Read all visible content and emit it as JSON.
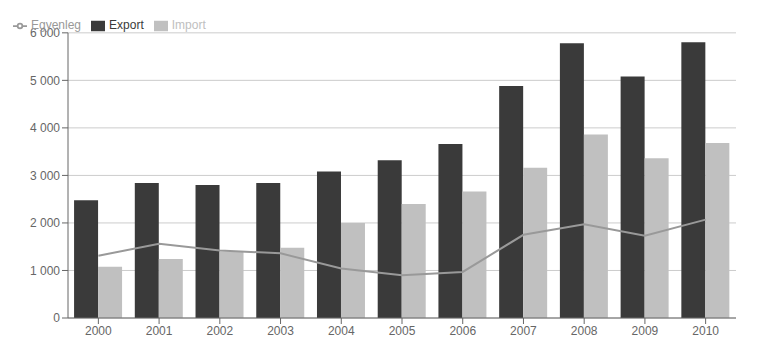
{
  "chart_data": {
    "type": "bar",
    "categories": [
      "2000",
      "2001",
      "2002",
      "2003",
      "2004",
      "2005",
      "2006",
      "2007",
      "2008",
      "2009",
      "2010"
    ],
    "series": [
      {
        "name": "Export",
        "type": "bar",
        "color": "#3a3a3a",
        "values": [
          2480,
          2840,
          2800,
          2840,
          3080,
          3320,
          3660,
          4880,
          5780,
          5080,
          5800
        ]
      },
      {
        "name": "Import",
        "type": "bar",
        "color": "#c0c0c0",
        "values": [
          1080,
          1240,
          1400,
          1480,
          2000,
          2400,
          2660,
          3160,
          3860,
          3360,
          3680
        ]
      },
      {
        "name": "Egyenleg",
        "type": "line",
        "color": "#999999",
        "values": [
          1310,
          1560,
          1420,
          1360,
          1040,
          900,
          970,
          1750,
          1970,
          1730,
          2070
        ]
      }
    ],
    "ylim": [
      0,
      6000
    ],
    "yticks": [
      0,
      {
        "value": 1000,
        "label": "1 000"
      },
      {
        "value": 2000,
        "label": "2 000"
      },
      {
        "value": 3000,
        "label": "3 000"
      },
      {
        "value": 4000,
        "label": "4 000"
      },
      {
        "value": 5000,
        "label": "5 000"
      },
      {
        "value": 6000,
        "label": "6 000"
      }
    ],
    "grid": true,
    "legend": "upper left"
  }
}
